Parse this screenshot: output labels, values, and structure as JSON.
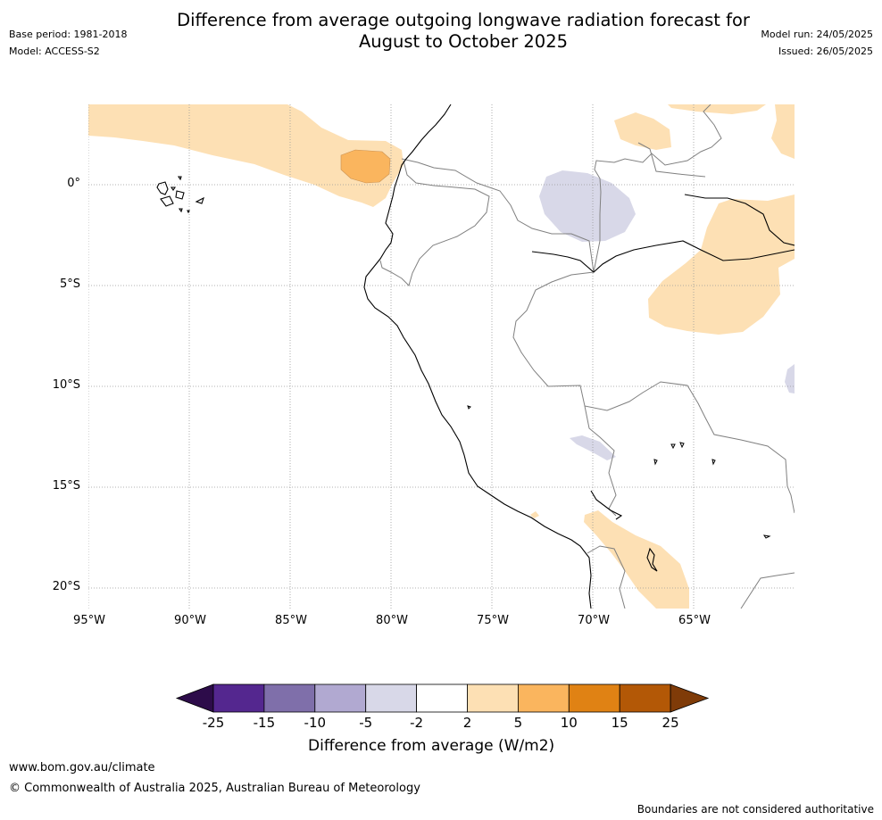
{
  "title_lines": [
    "Difference from average outgoing longwave radiation forecast for",
    "August to October 2025"
  ],
  "meta_left": {
    "base_period": "Base period: 1981-2018",
    "model": "Model: ACCESS-S2"
  },
  "meta_right": {
    "model_run": "Model run: 24/05/2025",
    "issued": "Issued: 26/05/2025"
  },
  "map": {
    "lat_ticks": [
      "0°",
      "5°S",
      "10°S",
      "15°S",
      "20°S"
    ],
    "lon_ticks": [
      "95°W",
      "90°W",
      "85°W",
      "80°W",
      "75°W",
      "70°W",
      "65°W"
    ]
  },
  "legend": {
    "title": "Difference from average (W/m2)",
    "labels": [
      "-25",
      "-15",
      "-10",
      "-5",
      "-2",
      "2",
      "5",
      "10",
      "15",
      "25"
    ],
    "colors": [
      "#2d0c4a",
      "#54278f",
      "#7f6faa",
      "#b1a9d1",
      "#d8d8e8",
      "#ffffff",
      "#fde0b4",
      "#fab55e",
      "#e08214",
      "#b35806",
      "#7f3b08"
    ]
  },
  "footer": {
    "site": "www.bom.gov.au/climate",
    "copyright": "© Commonwealth of Australia 2025, Australian Bureau of Meteorology",
    "disclaimer": "Boundaries are not considered authoritative"
  },
  "colors": {
    "coast": "#000000",
    "border": "#808080",
    "grid": "#999999"
  }
}
